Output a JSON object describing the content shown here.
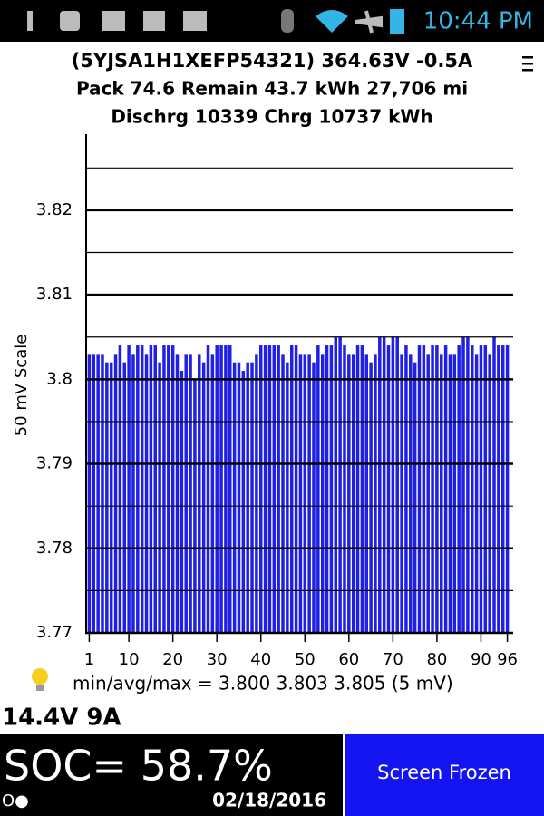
{
  "status_bar": {
    "time": "10:44 PM"
  },
  "header": {
    "line1": "(5YJSA1H1XEFP54321) 364.63V -0.5A",
    "line2": "Pack 74.6 Remain 43.7 kWh   27,706 mi",
    "line3": "Dischrg 10339 Chrg 10737 kWh"
  },
  "chart_data": {
    "type": "bar",
    "y_label": "50 mV Scale",
    "color": "#1f1fe6",
    "x": [
      1,
      2,
      3,
      4,
      5,
      6,
      7,
      8,
      9,
      10,
      11,
      12,
      13,
      14,
      15,
      16,
      17,
      18,
      19,
      20,
      21,
      22,
      23,
      24,
      25,
      26,
      27,
      28,
      29,
      30,
      31,
      32,
      33,
      34,
      35,
      36,
      37,
      38,
      39,
      40,
      41,
      42,
      43,
      44,
      45,
      46,
      47,
      48,
      49,
      50,
      51,
      52,
      53,
      54,
      55,
      56,
      57,
      58,
      59,
      60,
      61,
      62,
      63,
      64,
      65,
      66,
      67,
      68,
      69,
      70,
      71,
      72,
      73,
      74,
      75,
      76,
      77,
      78,
      79,
      80,
      81,
      82,
      83,
      84,
      85,
      86,
      87,
      88,
      89,
      90,
      91,
      92,
      93,
      94,
      95,
      96
    ],
    "values": [
      3.803,
      3.803,
      3.803,
      3.803,
      3.802,
      3.802,
      3.803,
      3.804,
      3.802,
      3.804,
      3.803,
      3.804,
      3.804,
      3.803,
      3.804,
      3.804,
      3.802,
      3.804,
      3.804,
      3.804,
      3.803,
      3.801,
      3.803,
      3.803,
      3.8,
      3.803,
      3.802,
      3.804,
      3.803,
      3.804,
      3.804,
      3.804,
      3.804,
      3.802,
      3.802,
      3.801,
      3.802,
      3.802,
      3.803,
      3.804,
      3.804,
      3.804,
      3.804,
      3.804,
      3.803,
      3.802,
      3.804,
      3.804,
      3.803,
      3.803,
      3.803,
      3.802,
      3.804,
      3.803,
      3.804,
      3.804,
      3.805,
      3.805,
      3.804,
      3.803,
      3.803,
      3.804,
      3.804,
      3.803,
      3.802,
      3.803,
      3.805,
      3.805,
      3.804,
      3.805,
      3.805,
      3.803,
      3.804,
      3.803,
      3.802,
      3.804,
      3.804,
      3.803,
      3.804,
      3.804,
      3.803,
      3.804,
      3.803,
      3.803,
      3.804,
      3.805,
      3.805,
      3.804,
      3.803,
      3.804,
      3.804,
      3.803,
      3.805,
      3.804,
      3.804,
      3.804
    ],
    "xlim": [
      0.5,
      96.5
    ],
    "xticks": [
      1,
      10,
      20,
      30,
      40,
      50,
      60,
      70,
      80,
      90,
      96
    ],
    "ylim": [
      3.77,
      3.829
    ],
    "yticks": [
      3.77,
      3.78,
      3.79,
      3.8,
      3.81,
      3.82
    ],
    "minor_yticks": [
      3.775,
      3.785,
      3.795,
      3.805,
      3.815,
      3.825
    ],
    "grid": true
  },
  "stats": "min/avg/max = 3.800 3.803 3.805  (5 mV)",
  "aux": "14.4V 9A",
  "footer": {
    "soc": "SOC= 58.7%",
    "indicator": "O●",
    "date": "02/18/2016",
    "button": "Screen Frozen"
  }
}
